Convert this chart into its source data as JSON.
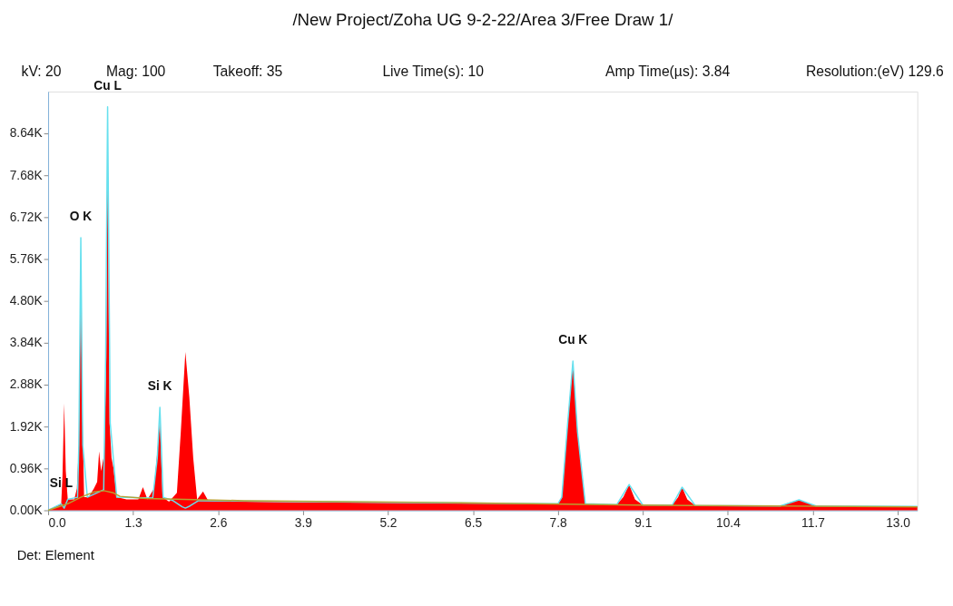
{
  "chart_data": {
    "type": "area",
    "title": "/New Project/Zoha UG 9-2-22/Area 3/Free Draw 1/",
    "annotations": [
      "kV: 20",
      "Mag: 100",
      "Takeoff: 35",
      "Live Time(s): 10",
      "Amp Time(µs): 3.84",
      "Resolution:(eV) 129.6",
      "Det: Element",
      {
        "text": "Si L",
        "x": 0.2,
        "y": 150
      },
      {
        "text": "O  K",
        "x": 0.5,
        "y": 6250
      },
      {
        "text": "Cu L",
        "x": 0.91,
        "y": 9250
      },
      {
        "text": "Si K",
        "x": 1.71,
        "y": 2360
      },
      {
        "text": "Cu K",
        "x": 8.03,
        "y": 3420
      }
    ],
    "series": [
      {
        "color": "#ff0000",
        "x": [
          0.0,
          0.1,
          0.2,
          0.22,
          0.245,
          0.27,
          0.3,
          0.4,
          0.44,
          0.47,
          0.5,
          0.52,
          0.55,
          0.62,
          0.7,
          0.75,
          0.78,
          0.81,
          0.86,
          0.89,
          0.91,
          0.94,
          0.97,
          1.0,
          1.05,
          1.2,
          1.38,
          1.45,
          1.52,
          1.62,
          1.68,
          1.71,
          1.75,
          1.85,
          1.97,
          2.03,
          2.1,
          2.16,
          2.22,
          2.28,
          2.37,
          2.45,
          3.0,
          3.9,
          5.2,
          6.5,
          7.8,
          7.86,
          7.95,
          8.03,
          8.1,
          8.22,
          8.7,
          8.8,
          8.89,
          8.98,
          9.1,
          9.55,
          9.64,
          9.7,
          9.78,
          9.9,
          11.2,
          11.35,
          11.49,
          11.62,
          11.75,
          13.3
        ],
        "values": [
          0,
          80,
          150,
          800,
          2450,
          900,
          250,
          250,
          500,
          1500,
          5350,
          2500,
          300,
          300,
          500,
          650,
          1350,
          900,
          1300,
          3500,
          8150,
          2000,
          1200,
          960,
          300,
          250,
          250,
          530,
          250,
          500,
          1500,
          2060,
          300,
          200,
          400,
          1800,
          3630,
          2600,
          1200,
          250,
          430,
          220,
          200,
          180,
          170,
          160,
          150,
          300,
          2000,
          3420,
          1800,
          150,
          130,
          300,
          590,
          250,
          120,
          120,
          300,
          530,
          250,
          110,
          100,
          180,
          240,
          170,
          100,
          90
        ]
      },
      {
        "type": "line",
        "color": "#66e0ee",
        "x": [
          0.0,
          0.2,
          0.245,
          0.3,
          0.45,
          0.47,
          0.5,
          0.53,
          0.6,
          0.85,
          0.88,
          0.91,
          0.95,
          1.05,
          1.6,
          1.67,
          1.71,
          1.76,
          1.9,
          2.05,
          2.1,
          2.17,
          2.3,
          7.8,
          7.86,
          7.95,
          8.03,
          8.1,
          8.22,
          8.7,
          8.89,
          9.1,
          9.55,
          9.7,
          9.9,
          11.2,
          11.49,
          11.75,
          13.3
        ],
        "values": [
          0,
          150,
          50,
          250,
          300,
          1500,
          6250,
          1500,
          300,
          470,
          3500,
          9250,
          2000,
          300,
          280,
          1200,
          2360,
          300,
          230,
          80,
          50,
          100,
          220,
          150,
          300,
          2000,
          3420,
          1800,
          150,
          130,
          590,
          120,
          120,
          530,
          110,
          100,
          240,
          100,
          90
        ]
      },
      {
        "type": "line",
        "color": "#b8a030",
        "x": [
          0.0,
          0.3,
          0.5,
          0.7,
          0.85,
          1.0,
          1.1,
          1.5,
          3.0,
          6.0,
          9.0,
          13.3
        ],
        "values": [
          0,
          150,
          300,
          420,
          450,
          400,
          320,
          270,
          220,
          180,
          120,
          80
        ]
      }
    ],
    "xlim": [
      0,
      13.3
    ],
    "ylim": [
      0,
      9600
    ],
    "xticks": [
      {
        "value": 0,
        "label": "0.0"
      },
      1.3,
      2.6,
      3.9,
      5.2,
      6.5,
      7.8,
      9.1,
      10.4,
      11.7,
      {
        "value": 13,
        "label": "13.0"
      }
    ],
    "yticks": [
      {
        "value": 0,
        "label": "0.00K"
      },
      {
        "value": 960,
        "label": "0.96K"
      },
      {
        "value": 1920,
        "label": "1.92K"
      },
      {
        "value": 2880,
        "label": "2.88K"
      },
      {
        "value": 3840,
        "label": "3.84K"
      },
      {
        "value": 4800,
        "label": "4.80K"
      },
      {
        "value": 5760,
        "label": "5.76K"
      },
      {
        "value": 6720,
        "label": "6.72K"
      },
      {
        "value": 7680,
        "label": "7.68K"
      },
      {
        "value": 8640,
        "label": "8.64K"
      }
    ],
    "grid": false
  }
}
